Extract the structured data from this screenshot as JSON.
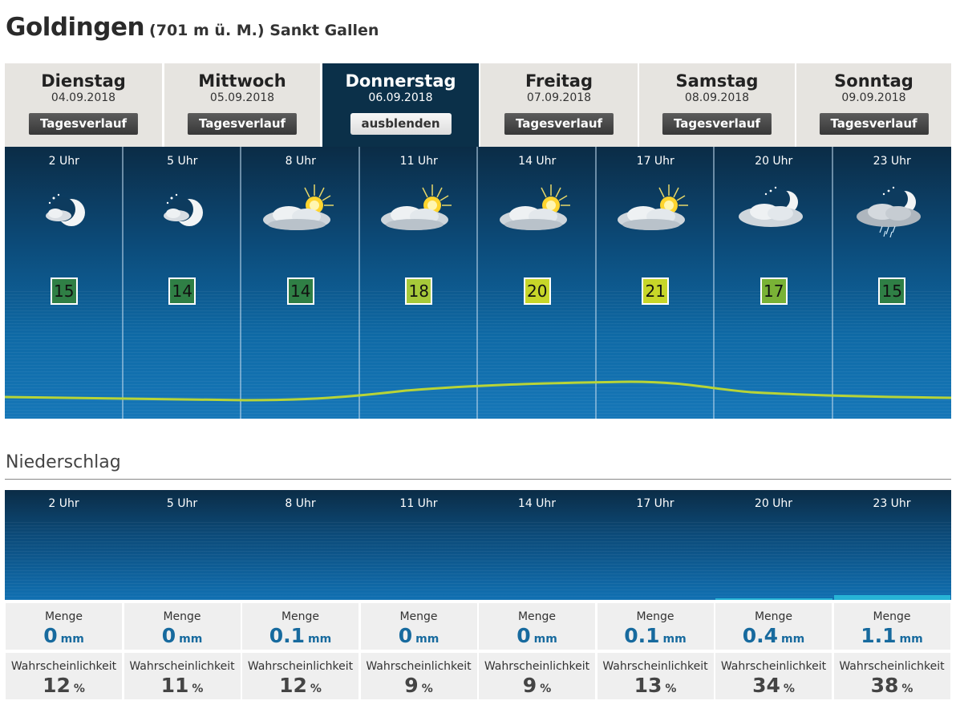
{
  "location": {
    "city": "Goldingen",
    "meta": "(701 m ü. M.) Sankt Gallen"
  },
  "days": [
    {
      "name": "Dienstag",
      "date": "04.09.2018",
      "button": "Tagesverlauf",
      "active": false
    },
    {
      "name": "Mittwoch",
      "date": "05.09.2018",
      "button": "Tagesverlauf",
      "active": false
    },
    {
      "name": "Donnerstag",
      "date": "06.09.2018",
      "button": "ausblenden",
      "active": true
    },
    {
      "name": "Freitag",
      "date": "07.09.2018",
      "button": "Tagesverlauf",
      "active": false
    },
    {
      "name": "Samstag",
      "date": "08.09.2018",
      "button": "Tagesverlauf",
      "active": false
    },
    {
      "name": "Sonntag",
      "date": "09.09.2018",
      "button": "Tagesverlauf",
      "active": false
    }
  ],
  "hourly": [
    {
      "hour": "2 Uhr",
      "icon": "night-moon-few-clouds-icon",
      "temp": "15",
      "temp_color": "#2f7f45"
    },
    {
      "hour": "5 Uhr",
      "icon": "night-moon-few-clouds-icon",
      "temp": "14",
      "temp_color": "#2f7f45"
    },
    {
      "hour": "8 Uhr",
      "icon": "sun-cloud-icon",
      "temp": "14",
      "temp_color": "#2f7f45"
    },
    {
      "hour": "11 Uhr",
      "icon": "sun-cloud-icon",
      "temp": "18",
      "temp_color": "#a6c93a"
    },
    {
      "hour": "14 Uhr",
      "icon": "sun-cloud-icon",
      "temp": "20",
      "temp_color": "#c7d629"
    },
    {
      "hour": "17 Uhr",
      "icon": "sun-cloud-icon",
      "temp": "21",
      "temp_color": "#c7d629"
    },
    {
      "hour": "20 Uhr",
      "icon": "night-moon-cloud-icon",
      "temp": "17",
      "temp_color": "#79b236"
    },
    {
      "hour": "23 Uhr",
      "icon": "night-moon-cloud-rain-icon",
      "temp": "15",
      "temp_color": "#2f7f45"
    }
  ],
  "precipitation": {
    "title": "Niederschlag",
    "amount_label": "Menge",
    "probability_label": "Wahrscheinlichkeit",
    "amount_unit": "mm",
    "probability_unit": "%",
    "bar_color": "#27b3d6",
    "slots": [
      {
        "hour": "2 Uhr",
        "amount": "0",
        "probability": "12"
      },
      {
        "hour": "5 Uhr",
        "amount": "0",
        "probability": "11"
      },
      {
        "hour": "8 Uhr",
        "amount": "0.1",
        "probability": "12"
      },
      {
        "hour": "11 Uhr",
        "amount": "0",
        "probability": "9"
      },
      {
        "hour": "14 Uhr",
        "amount": "0",
        "probability": "9"
      },
      {
        "hour": "17 Uhr",
        "amount": "0.1",
        "probability": "13"
      },
      {
        "hour": "20 Uhr",
        "amount": "0.4",
        "probability": "34"
      },
      {
        "hour": "23 Uhr",
        "amount": "1.1",
        "probability": "38"
      }
    ]
  }
}
